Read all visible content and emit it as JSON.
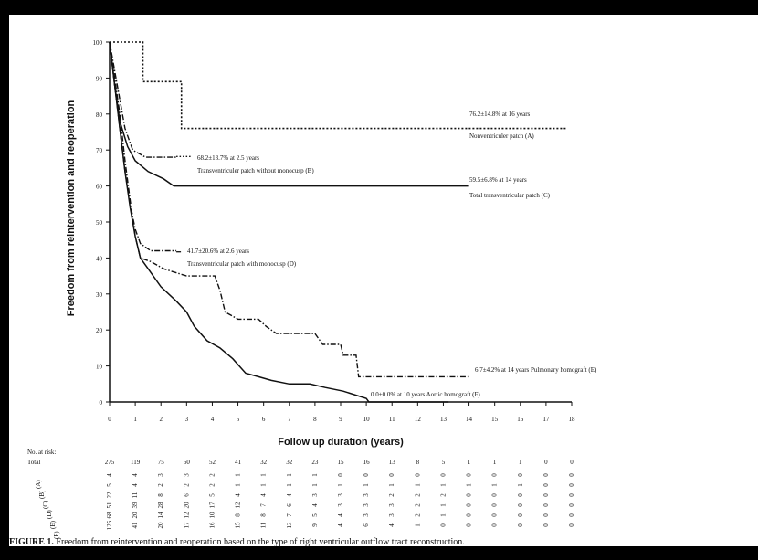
{
  "caption": {
    "label": "FIGURE 1.",
    "text": "Freedom from reintervention and reoperation based on the type of right ventricular outflow tract reconstruction."
  },
  "chart_data": {
    "type": "line",
    "title": "",
    "xlabel": "Follow up duration (years)",
    "ylabel": "Freedom from reintervention and reoperation",
    "xlim": [
      0,
      18
    ],
    "ylim": [
      0,
      100
    ],
    "xticks": [
      "0",
      "1",
      "2",
      "3",
      "4",
      "5",
      "6",
      "7",
      "8",
      "9",
      "10",
      "11",
      "12",
      "13",
      "14",
      "15",
      "16",
      "17",
      "18"
    ],
    "yticks": [
      "0",
      "10",
      "20",
      "30",
      "40",
      "50",
      "60",
      "70",
      "80",
      "90",
      "100"
    ],
    "step": true,
    "series": [
      {
        "name": "A",
        "style": "dotted",
        "points": [
          [
            0,
            100
          ],
          [
            1.3,
            100
          ],
          [
            1.3,
            89
          ],
          [
            2.8,
            89
          ],
          [
            2.8,
            76
          ],
          [
            17.8,
            76
          ]
        ]
      },
      {
        "name": "B",
        "style": "dash-dot",
        "points": [
          [
            0,
            100
          ],
          [
            0.3,
            88
          ],
          [
            0.6,
            76
          ],
          [
            0.9,
            70
          ],
          [
            1.4,
            68
          ],
          [
            2.6,
            68
          ]
        ]
      },
      {
        "name": "C",
        "style": "solid",
        "points": [
          [
            0,
            100
          ],
          [
            0.2,
            88
          ],
          [
            0.4,
            78
          ],
          [
            0.7,
            71
          ],
          [
            1.0,
            67
          ],
          [
            1.5,
            64
          ],
          [
            2.1,
            62
          ],
          [
            2.5,
            60
          ],
          [
            14.0,
            60
          ]
        ]
      },
      {
        "name": "D",
        "style": "dash-dot",
        "points": [
          [
            0,
            100
          ],
          [
            0.2,
            88
          ],
          [
            0.4,
            76
          ],
          [
            0.6,
            64
          ],
          [
            0.8,
            55
          ],
          [
            1.0,
            48
          ],
          [
            1.2,
            44
          ],
          [
            1.6,
            42
          ],
          [
            2.6,
            42
          ]
        ]
      },
      {
        "name": "E",
        "style": "dash-dot",
        "points": [
          [
            0,
            100
          ],
          [
            0.2,
            90
          ],
          [
            0.4,
            80
          ],
          [
            0.6,
            67
          ],
          [
            0.8,
            56
          ],
          [
            1.0,
            46
          ],
          [
            1.2,
            40
          ],
          [
            1.6,
            39
          ],
          [
            2.1,
            37
          ],
          [
            3.0,
            35
          ],
          [
            4.1,
            35
          ],
          [
            4.3,
            31
          ],
          [
            4.5,
            25
          ],
          [
            5.0,
            23
          ],
          [
            5.8,
            23
          ],
          [
            6.1,
            21
          ],
          [
            6.5,
            19
          ],
          [
            8.0,
            19
          ],
          [
            8.3,
            16
          ],
          [
            9.0,
            16
          ],
          [
            9.1,
            13
          ],
          [
            9.6,
            13
          ],
          [
            9.7,
            7
          ],
          [
            14.0,
            7
          ]
        ]
      },
      {
        "name": "F",
        "style": "solid",
        "points": [
          [
            0,
            100
          ],
          [
            0.2,
            88
          ],
          [
            0.4,
            76
          ],
          [
            0.6,
            64
          ],
          [
            0.8,
            54
          ],
          [
            1.0,
            46
          ],
          [
            1.2,
            40
          ],
          [
            1.5,
            37
          ],
          [
            2.0,
            32
          ],
          [
            2.6,
            28
          ],
          [
            3.0,
            25
          ],
          [
            3.3,
            21
          ],
          [
            3.8,
            17
          ],
          [
            4.3,
            15
          ],
          [
            4.8,
            12
          ],
          [
            5.3,
            8
          ],
          [
            5.8,
            7
          ],
          [
            6.3,
            6
          ],
          [
            7.0,
            5
          ],
          [
            7.8,
            5
          ],
          [
            8.4,
            4
          ],
          [
            9.1,
            3
          ],
          [
            10.0,
            1
          ],
          [
            10.1,
            0
          ],
          [
            13.2,
            0
          ]
        ]
      }
    ],
    "annotations": [
      {
        "series": "A",
        "value": "76.2±14.8% at 16 years",
        "label": "Nonventriculer patch (A)"
      },
      {
        "series": "B",
        "value": "68.2±13.7% at 2.5 years",
        "label": "Transventriculer patch without monocusp (B)"
      },
      {
        "series": "C",
        "value": "59.5±6.8% at 14 years",
        "label": "Total transventricular patch (C)"
      },
      {
        "series": "D",
        "value": "41.7±20.6% at 2.6 years",
        "label": "Transventricular patch with monocusp (D)"
      },
      {
        "series": "E",
        "value": "6.7±4.2% at 14 years",
        "label": "Pulmonary homograft (E)"
      },
      {
        "series": "F",
        "value": "0.0±0.0% at 10 years",
        "label": "Aortic homograft (F)"
      }
    ],
    "risk_table": {
      "title": "No. at risk",
      "total_label": "Total",
      "total": [
        "275",
        "119",
        "75",
        "60",
        "52",
        "41",
        "32",
        "32",
        "23",
        "15",
        "16",
        "13",
        "8",
        "5",
        "1",
        "1",
        "1",
        "0",
        "0"
      ],
      "rows": [
        [
          "4",
          "4",
          "3",
          "3",
          "2",
          "1",
          "1",
          "1",
          "1",
          "0",
          "0",
          "0",
          "0",
          "0",
          "0",
          "0",
          "0",
          "0",
          "0"
        ],
        [
          "5",
          "4",
          "2",
          "2",
          "2",
          "1",
          "1",
          "1",
          "1",
          "1",
          "1",
          "1",
          "1",
          "1",
          "1",
          "1",
          "1",
          "0",
          "0"
        ],
        [
          "22",
          "11",
          "8",
          "6",
          "5",
          "4",
          "4",
          "4",
          "3",
          "3",
          "3",
          "2",
          "2",
          "2",
          "0",
          "0",
          "0",
          "0",
          "0"
        ],
        [
          "51",
          "39",
          "28",
          "20",
          "17",
          "12",
          "7",
          "6",
          "4",
          "3",
          "3",
          "3",
          "2",
          "1",
          "0",
          "0",
          "0",
          "0",
          "0"
        ],
        [
          "68",
          "20",
          "14",
          "12",
          "10",
          "8",
          "8",
          "7",
          "5",
          "4",
          "3",
          "3",
          "2",
          "1",
          "0",
          "0",
          "0",
          "0",
          "0"
        ],
        [
          "125",
          "41",
          "20",
          "17",
          "16",
          "15",
          "11",
          "13",
          "9",
          "4",
          "6",
          "4",
          "1",
          "0",
          "0",
          "0",
          "0",
          "0",
          "0"
        ]
      ]
    }
  }
}
